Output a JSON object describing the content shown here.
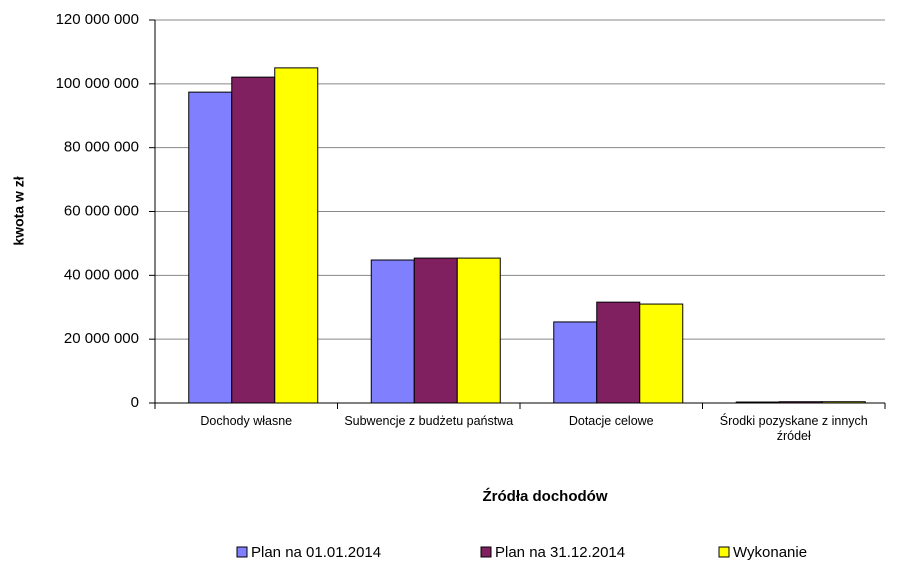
{
  "chart_data": {
    "type": "bar",
    "y_label": "kwota w zł",
    "x_label": "Źródła dochodów",
    "categories": [
      "Dochody własne",
      "Subwencje z budżetu państwa",
      "Dotacje  celowe",
      "Środki pozyskane z innych źródeł"
    ],
    "series": [
      {
        "name": "Plan na 01.01.2014",
        "color": "#8080ff",
        "values": [
          97400000,
          44800000,
          25400000,
          300000
        ]
      },
      {
        "name": "Plan na 31.12.2014",
        "color": "#802060",
        "values": [
          102100000,
          45400000,
          31600000,
          400000
        ]
      },
      {
        "name": "Wykonanie",
        "color": "#ffff00",
        "values": [
          105000000,
          45400000,
          31000000,
          400000
        ]
      }
    ],
    "ylim": [
      0,
      120000000
    ],
    "yticks": [
      0,
      {
        "value": 20000000,
        "label": "20 000 000"
      },
      {
        "value": 40000000,
        "label": "40 000 000"
      },
      {
        "value": 60000000,
        "label": "60 000 000"
      },
      {
        "value": 80000000,
        "label": "80 000 000"
      },
      {
        "value": 100000000,
        "label": "100 000 000"
      },
      {
        "value": 120000000,
        "label": "120 000 000"
      }
    ],
    "grid": true,
    "legend": "bottom"
  }
}
